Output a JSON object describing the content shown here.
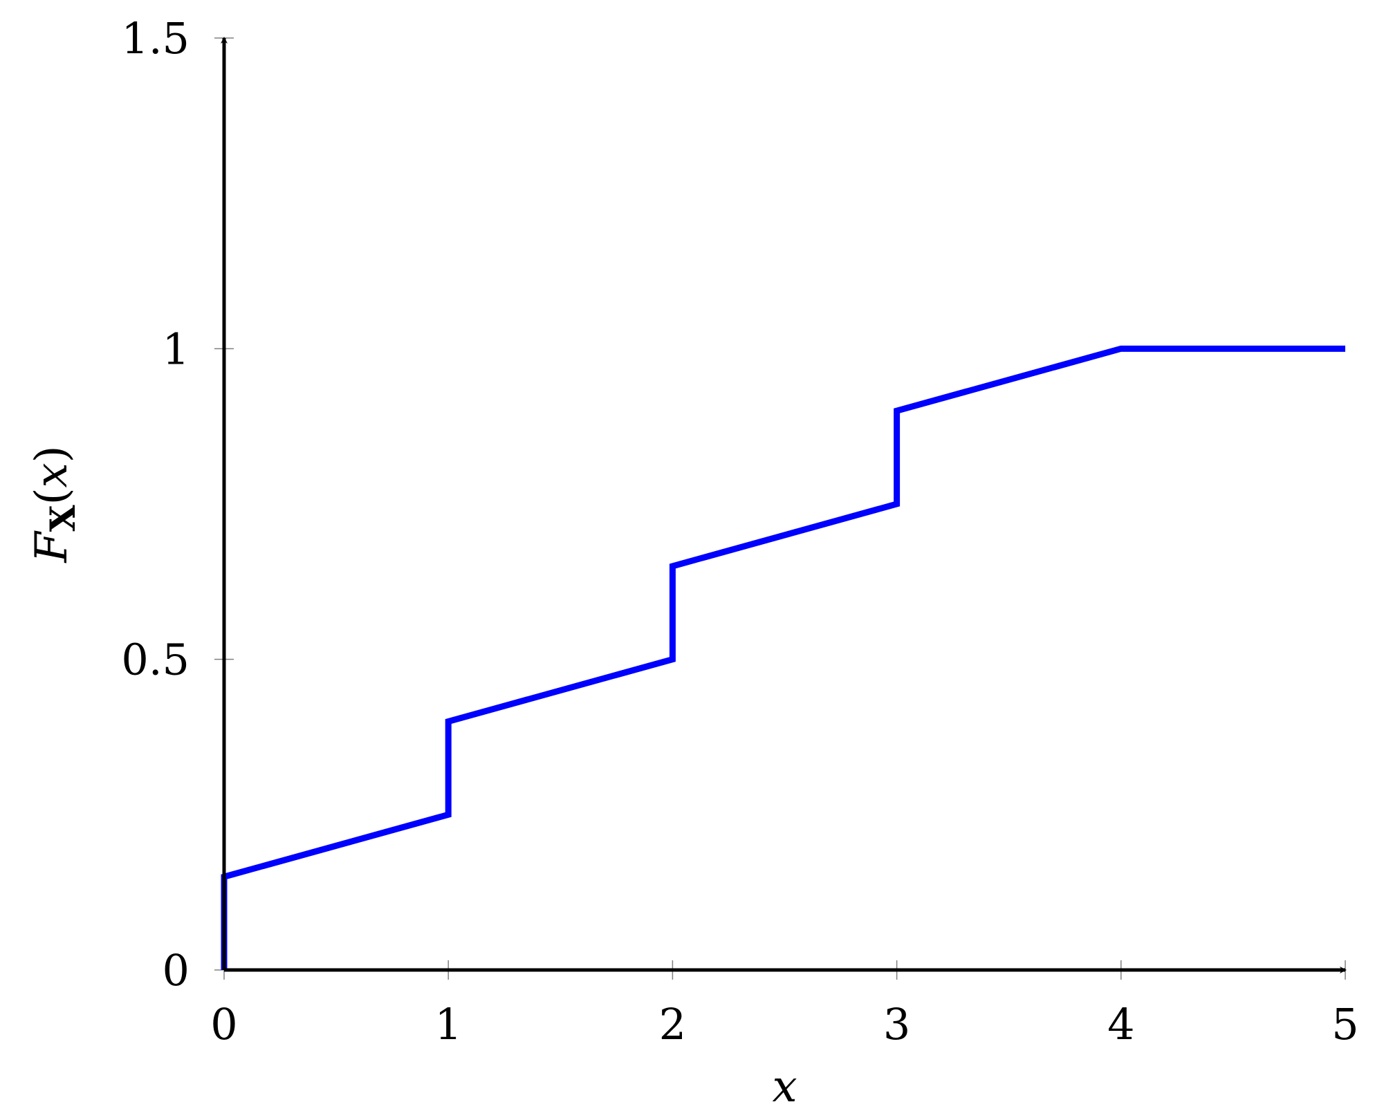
{
  "chart_data": {
    "type": "line",
    "title": "",
    "xlabel": "x",
    "ylabel": {
      "main": "F",
      "subscript": "X",
      "open": "(",
      "arg": "x",
      "close": ")"
    },
    "xlim": [
      0,
      5
    ],
    "ylim": [
      0,
      1.5
    ],
    "x_ticks": [
      0,
      1,
      2,
      3,
      4,
      5
    ],
    "x_tick_labels": [
      "0",
      "1",
      "2",
      "3",
      "4",
      "5"
    ],
    "y_ticks": [
      0,
      0.5,
      1,
      1.5
    ],
    "y_tick_labels": [
      "0",
      "0.5",
      "1",
      "1.5"
    ],
    "grid": false,
    "series": [
      {
        "color": "#0000ff",
        "points": [
          [
            0,
            0
          ],
          [
            0,
            0.15
          ],
          [
            1,
            0.25
          ],
          [
            1,
            0.4
          ],
          [
            2,
            0.5
          ],
          [
            2,
            0.65
          ],
          [
            3,
            0.75
          ],
          [
            3,
            0.9
          ],
          [
            4,
            1
          ],
          [
            5,
            1
          ]
        ]
      }
    ],
    "axis_color": "#000000",
    "tick_color": "#808080"
  }
}
